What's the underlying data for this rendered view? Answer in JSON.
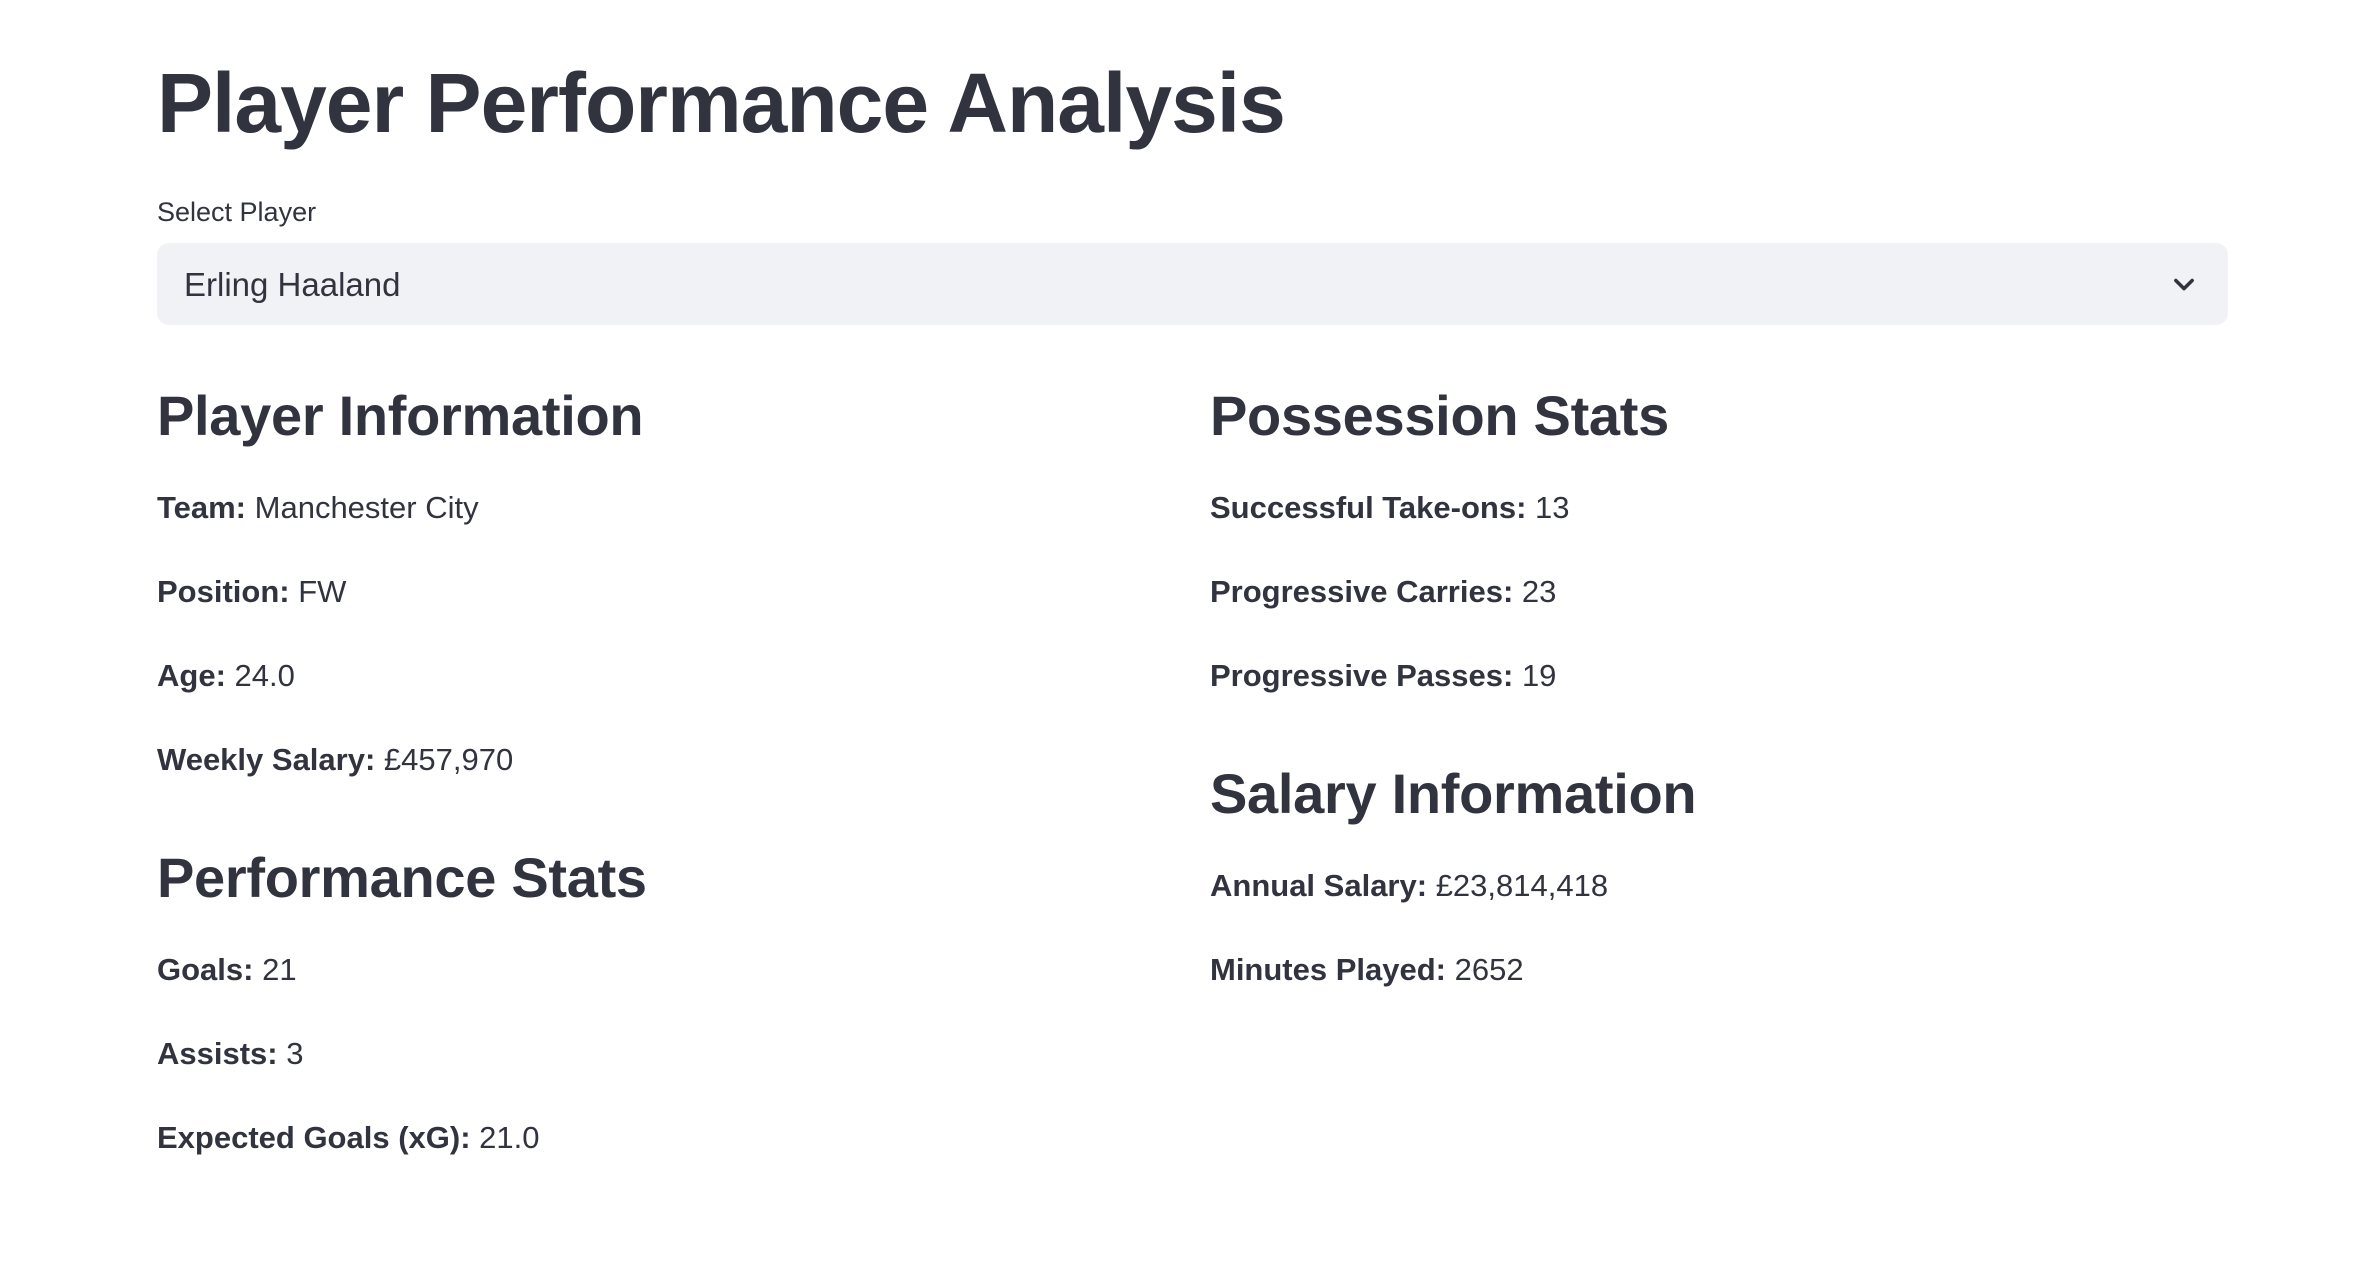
{
  "title": "Player Performance Analysis",
  "select": {
    "label": "Select Player",
    "selected": "Erling Haaland"
  },
  "left_column": {
    "player_info": {
      "heading": "Player Information",
      "items": [
        {
          "label": "Team:",
          "value": "Manchester City"
        },
        {
          "label": "Position:",
          "value": "FW"
        },
        {
          "label": "Age:",
          "value": "24.0"
        },
        {
          "label": "Weekly Salary:",
          "value": "£457,970"
        }
      ]
    },
    "performance": {
      "heading": "Performance Stats",
      "items": [
        {
          "label": "Goals:",
          "value": "21"
        },
        {
          "label": "Assists:",
          "value": "3"
        },
        {
          "label": "Expected Goals (xG):",
          "value": "21.0"
        }
      ]
    }
  },
  "right_column": {
    "possession": {
      "heading": "Possession Stats",
      "items": [
        {
          "label": "Successful Take-ons:",
          "value": "13"
        },
        {
          "label": "Progressive Carries:",
          "value": "23"
        },
        {
          "label": "Progressive Passes:",
          "value": "19"
        }
      ]
    },
    "salary": {
      "heading": "Salary Information",
      "items": [
        {
          "label": "Annual Salary:",
          "value": "£23,814,418"
        },
        {
          "label": "Minutes Played:",
          "value": "2652"
        }
      ]
    }
  },
  "colors": {
    "text": "#31333f",
    "select_background": "#f0f2f6",
    "background": "#ffffff"
  },
  "icons": {
    "select_chevron": "chevron-down-icon"
  }
}
